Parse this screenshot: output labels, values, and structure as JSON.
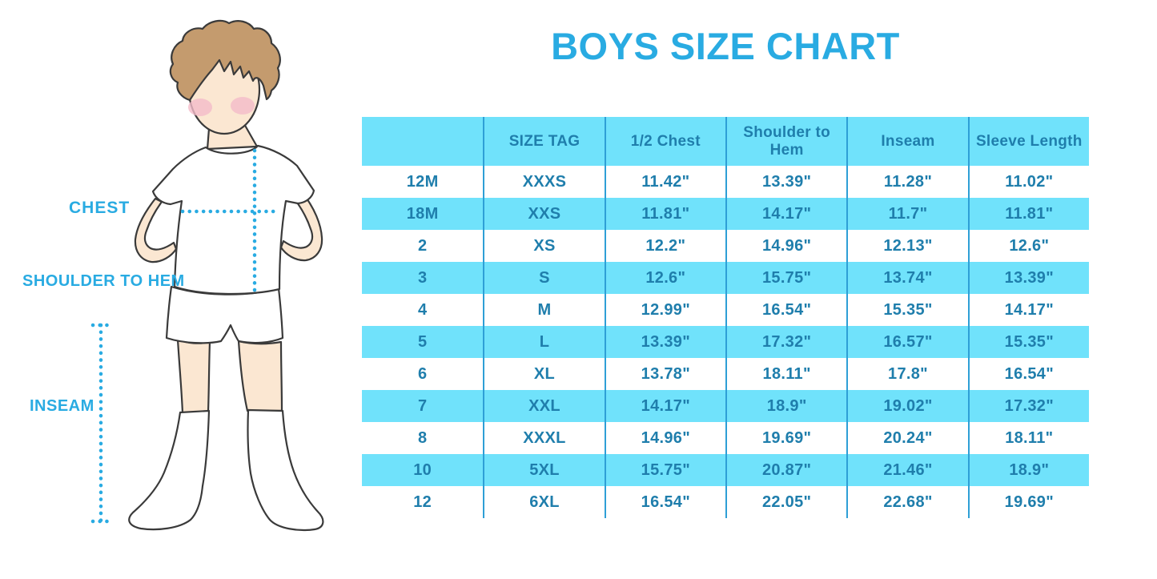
{
  "title": "BOYS SIZE CHART",
  "figure": {
    "description": "cartoon-boy-in-white-tshirt-shorts-and-knee-socks-with-measurement-guides",
    "labels": {
      "chest": "CHEST",
      "shoulder_to_hem": "SHOULDER TO HEM",
      "inseam": "INSEAM"
    }
  },
  "colors": {
    "accent_blue": "#29ABE2",
    "table_fill_cyan": "#70E2FB",
    "table_text": "#1F7EAC",
    "table_grid_line": "#2E9FD6",
    "hair_brown": "#C49B6E",
    "skin": "#FBE7D2",
    "blush_pink": "#F4BBC9",
    "outline": "#3A3A3A"
  },
  "chart_data": {
    "type": "table",
    "title": "BOYS SIZE CHART",
    "columns": [
      "",
      "SIZE TAG",
      "1/2 Chest",
      "Shoulder to Hem",
      "Inseam",
      "Sleeve Length"
    ],
    "rows": [
      [
        "12M",
        "XXXS",
        "11.42\"",
        "13.39\"",
        "11.28\"",
        "11.02\""
      ],
      [
        "18M",
        "XXS",
        "11.81\"",
        "14.17\"",
        "11.7\"",
        "11.81\""
      ],
      [
        "2",
        "XS",
        "12.2\"",
        "14.96\"",
        "12.13\"",
        "12.6\""
      ],
      [
        "3",
        "S",
        "12.6\"",
        "15.75\"",
        "13.74\"",
        "13.39\""
      ],
      [
        "4",
        "M",
        "12.99\"",
        "16.54\"",
        "15.35\"",
        "14.17\""
      ],
      [
        "5",
        "L",
        "13.39\"",
        "17.32\"",
        "16.57\"",
        "15.35\""
      ],
      [
        "6",
        "XL",
        "13.78\"",
        "18.11\"",
        "17.8\"",
        "16.54\""
      ],
      [
        "7",
        "XXL",
        "14.17\"",
        "18.9\"",
        "19.02\"",
        "17.32\""
      ],
      [
        "8",
        "XXXL",
        "14.96\"",
        "19.69\"",
        "20.24\"",
        "18.11\""
      ],
      [
        "10",
        "5XL",
        "15.75\"",
        "20.87\"",
        "21.46\"",
        "18.9\""
      ],
      [
        "12",
        "6XL",
        "16.54\"",
        "22.05\"",
        "22.68\"",
        "19.69\""
      ]
    ],
    "layout": {
      "striping": "header row and alternate data rows filled cyan, others white",
      "grid": "vertical column separator lines only, no horizontal lines"
    }
  }
}
